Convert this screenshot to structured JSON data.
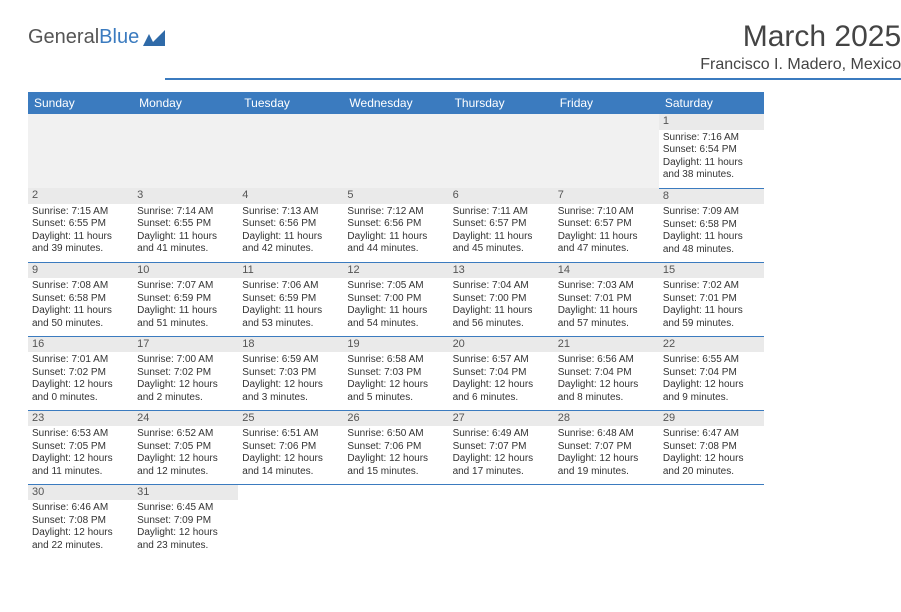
{
  "logo": {
    "part1": "General",
    "part2": "Blue"
  },
  "title": "March 2025",
  "location": "Francisco I. Madero, Mexico",
  "days": [
    "Sunday",
    "Monday",
    "Tuesday",
    "Wednesday",
    "Thursday",
    "Friday",
    "Saturday"
  ],
  "colors": {
    "accent": "#3b7bbf",
    "header_bg": "#3b7bbf",
    "daynum_bg": "#eaeaea"
  },
  "cells": {
    "d1": {
      "n": "1",
      "sr": "Sunrise: 7:16 AM",
      "ss": "Sunset: 6:54 PM",
      "dl1": "Daylight: 11 hours",
      "dl2": "and 38 minutes."
    },
    "d2": {
      "n": "2",
      "sr": "Sunrise: 7:15 AM",
      "ss": "Sunset: 6:55 PM",
      "dl1": "Daylight: 11 hours",
      "dl2": "and 39 minutes."
    },
    "d3": {
      "n": "3",
      "sr": "Sunrise: 7:14 AM",
      "ss": "Sunset: 6:55 PM",
      "dl1": "Daylight: 11 hours",
      "dl2": "and 41 minutes."
    },
    "d4": {
      "n": "4",
      "sr": "Sunrise: 7:13 AM",
      "ss": "Sunset: 6:56 PM",
      "dl1": "Daylight: 11 hours",
      "dl2": "and 42 minutes."
    },
    "d5": {
      "n": "5",
      "sr": "Sunrise: 7:12 AM",
      "ss": "Sunset: 6:56 PM",
      "dl1": "Daylight: 11 hours",
      "dl2": "and 44 minutes."
    },
    "d6": {
      "n": "6",
      "sr": "Sunrise: 7:11 AM",
      "ss": "Sunset: 6:57 PM",
      "dl1": "Daylight: 11 hours",
      "dl2": "and 45 minutes."
    },
    "d7": {
      "n": "7",
      "sr": "Sunrise: 7:10 AM",
      "ss": "Sunset: 6:57 PM",
      "dl1": "Daylight: 11 hours",
      "dl2": "and 47 minutes."
    },
    "d8": {
      "n": "8",
      "sr": "Sunrise: 7:09 AM",
      "ss": "Sunset: 6:58 PM",
      "dl1": "Daylight: 11 hours",
      "dl2": "and 48 minutes."
    },
    "d9": {
      "n": "9",
      "sr": "Sunrise: 7:08 AM",
      "ss": "Sunset: 6:58 PM",
      "dl1": "Daylight: 11 hours",
      "dl2": "and 50 minutes."
    },
    "d10": {
      "n": "10",
      "sr": "Sunrise: 7:07 AM",
      "ss": "Sunset: 6:59 PM",
      "dl1": "Daylight: 11 hours",
      "dl2": "and 51 minutes."
    },
    "d11": {
      "n": "11",
      "sr": "Sunrise: 7:06 AM",
      "ss": "Sunset: 6:59 PM",
      "dl1": "Daylight: 11 hours",
      "dl2": "and 53 minutes."
    },
    "d12": {
      "n": "12",
      "sr": "Sunrise: 7:05 AM",
      "ss": "Sunset: 7:00 PM",
      "dl1": "Daylight: 11 hours",
      "dl2": "and 54 minutes."
    },
    "d13": {
      "n": "13",
      "sr": "Sunrise: 7:04 AM",
      "ss": "Sunset: 7:00 PM",
      "dl1": "Daylight: 11 hours",
      "dl2": "and 56 minutes."
    },
    "d14": {
      "n": "14",
      "sr": "Sunrise: 7:03 AM",
      "ss": "Sunset: 7:01 PM",
      "dl1": "Daylight: 11 hours",
      "dl2": "and 57 minutes."
    },
    "d15": {
      "n": "15",
      "sr": "Sunrise: 7:02 AM",
      "ss": "Sunset: 7:01 PM",
      "dl1": "Daylight: 11 hours",
      "dl2": "and 59 minutes."
    },
    "d16": {
      "n": "16",
      "sr": "Sunrise: 7:01 AM",
      "ss": "Sunset: 7:02 PM",
      "dl1": "Daylight: 12 hours",
      "dl2": "and 0 minutes."
    },
    "d17": {
      "n": "17",
      "sr": "Sunrise: 7:00 AM",
      "ss": "Sunset: 7:02 PM",
      "dl1": "Daylight: 12 hours",
      "dl2": "and 2 minutes."
    },
    "d18": {
      "n": "18",
      "sr": "Sunrise: 6:59 AM",
      "ss": "Sunset: 7:03 PM",
      "dl1": "Daylight: 12 hours",
      "dl2": "and 3 minutes."
    },
    "d19": {
      "n": "19",
      "sr": "Sunrise: 6:58 AM",
      "ss": "Sunset: 7:03 PM",
      "dl1": "Daylight: 12 hours",
      "dl2": "and 5 minutes."
    },
    "d20": {
      "n": "20",
      "sr": "Sunrise: 6:57 AM",
      "ss": "Sunset: 7:04 PM",
      "dl1": "Daylight: 12 hours",
      "dl2": "and 6 minutes."
    },
    "d21": {
      "n": "21",
      "sr": "Sunrise: 6:56 AM",
      "ss": "Sunset: 7:04 PM",
      "dl1": "Daylight: 12 hours",
      "dl2": "and 8 minutes."
    },
    "d22": {
      "n": "22",
      "sr": "Sunrise: 6:55 AM",
      "ss": "Sunset: 7:04 PM",
      "dl1": "Daylight: 12 hours",
      "dl2": "and 9 minutes."
    },
    "d23": {
      "n": "23",
      "sr": "Sunrise: 6:53 AM",
      "ss": "Sunset: 7:05 PM",
      "dl1": "Daylight: 12 hours",
      "dl2": "and 11 minutes."
    },
    "d24": {
      "n": "24",
      "sr": "Sunrise: 6:52 AM",
      "ss": "Sunset: 7:05 PM",
      "dl1": "Daylight: 12 hours",
      "dl2": "and 12 minutes."
    },
    "d25": {
      "n": "25",
      "sr": "Sunrise: 6:51 AM",
      "ss": "Sunset: 7:06 PM",
      "dl1": "Daylight: 12 hours",
      "dl2": "and 14 minutes."
    },
    "d26": {
      "n": "26",
      "sr": "Sunrise: 6:50 AM",
      "ss": "Sunset: 7:06 PM",
      "dl1": "Daylight: 12 hours",
      "dl2": "and 15 minutes."
    },
    "d27": {
      "n": "27",
      "sr": "Sunrise: 6:49 AM",
      "ss": "Sunset: 7:07 PM",
      "dl1": "Daylight: 12 hours",
      "dl2": "and 17 minutes."
    },
    "d28": {
      "n": "28",
      "sr": "Sunrise: 6:48 AM",
      "ss": "Sunset: 7:07 PM",
      "dl1": "Daylight: 12 hours",
      "dl2": "and 19 minutes."
    },
    "d29": {
      "n": "29",
      "sr": "Sunrise: 6:47 AM",
      "ss": "Sunset: 7:08 PM",
      "dl1": "Daylight: 12 hours",
      "dl2": "and 20 minutes."
    },
    "d30": {
      "n": "30",
      "sr": "Sunrise: 6:46 AM",
      "ss": "Sunset: 7:08 PM",
      "dl1": "Daylight: 12 hours",
      "dl2": "and 22 minutes."
    },
    "d31": {
      "n": "31",
      "sr": "Sunrise: 6:45 AM",
      "ss": "Sunset: 7:09 PM",
      "dl1": "Daylight: 12 hours",
      "dl2": "and 23 minutes."
    }
  }
}
